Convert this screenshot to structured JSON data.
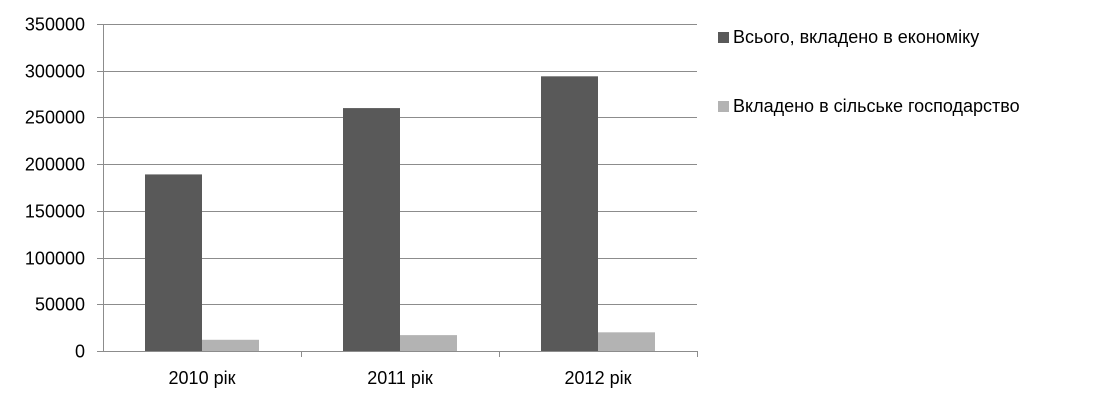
{
  "chart_data": {
    "type": "bar",
    "categories": [
      "2010 рік",
      "2011 рік",
      "2012 рік"
    ],
    "series": [
      {
        "name": "Всього, вкладено в економіку",
        "values": [
          189000,
          260000,
          294000
        ],
        "color": "#595959"
      },
      {
        "name": "Вкладено в сільське господарство",
        "values": [
          12000,
          17000,
          20000
        ],
        "color": "#b3b3b3"
      }
    ],
    "ylim": [
      0,
      350000
    ],
    "yticks": [
      "0",
      "50000",
      "100000",
      "150000",
      "200000",
      "250000",
      "300000",
      "350000"
    ],
    "grid": true,
    "legend_position": "right"
  }
}
